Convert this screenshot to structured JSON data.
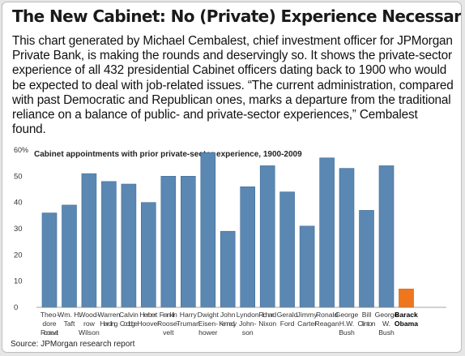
{
  "header": {
    "title": "The New Cabinet: No (Private) Experience Necessary",
    "description": "This chart generated by Michael Cembalest, chief investment officer for JPMorgan Private Bank, is making the rounds and deservingly so. It shows the private-sector experience of all 432 presidential Cabinet officers dating back to 1900 who would be expected to deal with job-related issues. “The current administration, compared with past Democratic and Republican ones, marks a departure from the traditional reliance on a balance of public- and private-sector experiences,” Cembalest found."
  },
  "chart_data": {
    "type": "bar",
    "title": "Cabinet appointments with prior private-sector experience, 1900-2009",
    "xlabel": "",
    "ylabel": "",
    "ylim": [
      0,
      60
    ],
    "y_ticks": [
      "0",
      "10",
      "20",
      "30",
      "40",
      "50",
      "60%"
    ],
    "grid": false,
    "categories": [
      [
        "Theo-",
        "dore",
        "Roosevelt"
      ],
      [
        "Wm. H.",
        "Taft"
      ],
      [
        "Wood-",
        "row",
        "Wilson"
      ],
      [
        "Warren",
        "Harding"
      ],
      [
        "Calvin",
        "Coolidge"
      ],
      [
        "Herbert",
        "Hoover"
      ],
      [
        "Franklin",
        "Roose-",
        "velt"
      ],
      [
        "Harry",
        "Truman"
      ],
      [
        "Dwight",
        "Eisen-",
        "hower"
      ],
      [
        "John",
        "Kennedy"
      ],
      [
        "Lyndon",
        "John-",
        "son"
      ],
      [
        "Richard",
        "Nixon"
      ],
      [
        "Gerald",
        "Ford"
      ],
      [
        "Jimmy",
        "Carter"
      ],
      [
        "Ronald",
        "Reagan"
      ],
      [
        "George",
        "H.W.",
        "Bush"
      ],
      [
        "Bill",
        "Clinton"
      ],
      [
        "George",
        "W.",
        "Bush"
      ],
      [
        "Barack",
        "Obama"
      ]
    ],
    "values": [
      36,
      39,
      51,
      48,
      47,
      40,
      50,
      50,
      59,
      29,
      46,
      54,
      44,
      31,
      57,
      53,
      37,
      54,
      7
    ],
    "highlight_index": 18,
    "colors": {
      "bar": "#5b87b3",
      "highlight": "#f0761d"
    }
  },
  "footer": {
    "source": "Source: JPMorgan research report"
  }
}
